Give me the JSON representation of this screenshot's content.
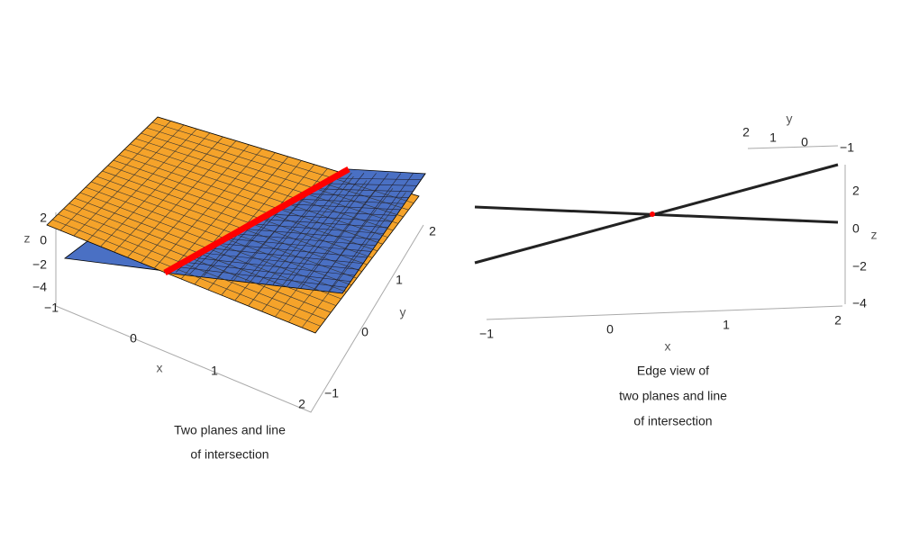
{
  "plots": [
    {
      "caption": [
        "Two planes and line",
        "of intersection"
      ],
      "x_label": "x",
      "y_label": "y",
      "z_label": "z",
      "x_ticks": [
        "−1",
        "0",
        "1",
        "2"
      ],
      "y_ticks": [
        "−1",
        "0",
        "1",
        "2"
      ],
      "z_ticks": [
        "2",
        "0",
        "−2",
        "−4"
      ]
    },
    {
      "caption": [
        "Edge view of",
        "two planes and line",
        "of intersection"
      ],
      "x_label": "x",
      "y_label": "y",
      "z_label": "z",
      "x_ticks": [
        "−1",
        "0",
        "1",
        "2"
      ],
      "y_ticks": [
        "2",
        "1",
        "0",
        "−1"
      ],
      "z_ticks": [
        "2",
        "0",
        "−2",
        "−4"
      ]
    }
  ]
}
